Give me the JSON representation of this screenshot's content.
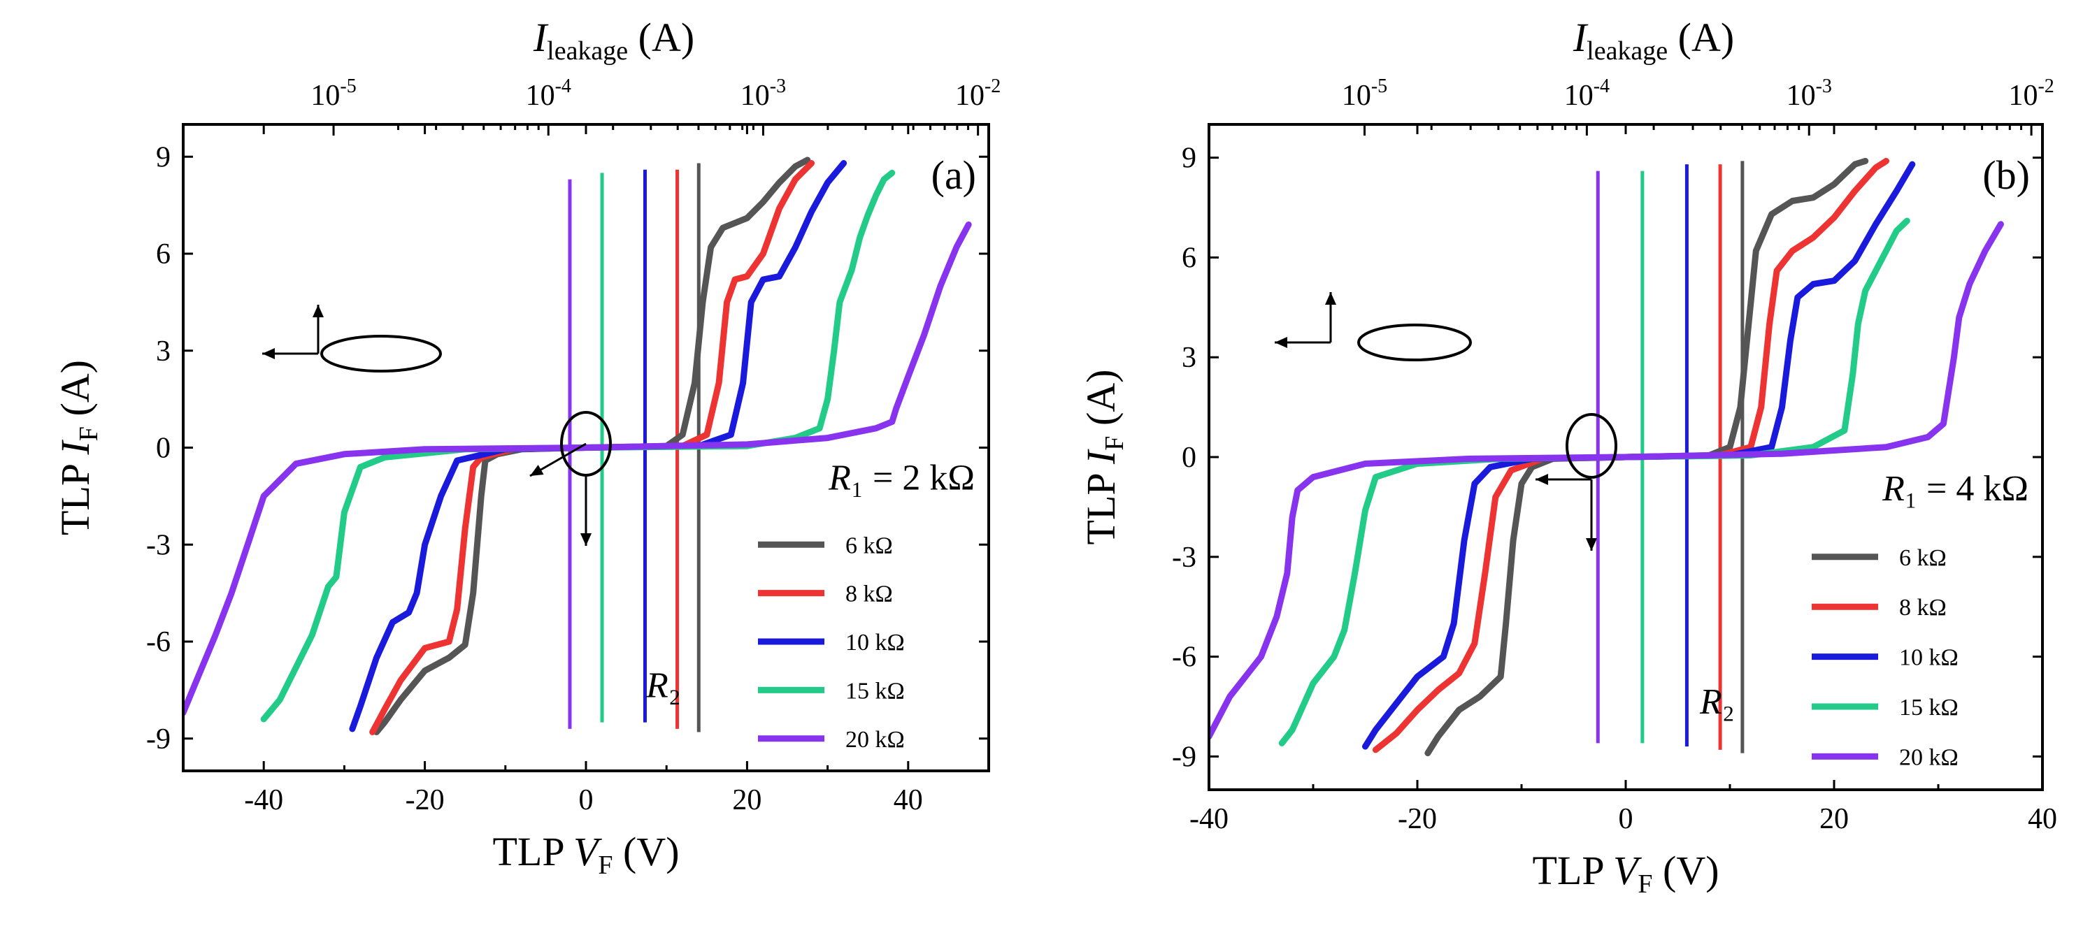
{
  "chart_data": [
    {
      "type": "line",
      "panel_label": "(a)",
      "r1_label": "R₁ = 2 kΩ",
      "xlabel": "TLP V_F (V)",
      "ylabel": "TLP I_F (A)",
      "x2label": "I_leakage (A)",
      "xlim": [
        -50,
        50
      ],
      "ylim": [
        -10,
        10
      ],
      "x2_log_range": [
        -5.7,
        -1.95
      ],
      "x_ticks": [
        -40,
        -20,
        0,
        20,
        40
      ],
      "y_ticks": [
        -9,
        -6,
        -3,
        0,
        3,
        6,
        9
      ],
      "x_tick_labels": [
        "-40",
        "-20",
        "0",
        "20",
        "40"
      ],
      "y_tick_labels": [
        "-9",
        "-6",
        "-3",
        "0",
        "3",
        "6",
        "9"
      ],
      "x2_ticks": [
        -5,
        -4,
        -3,
        -2
      ],
      "x2_tick_labels": [
        "10-5",
        "10-4",
        "10-3",
        "10-2"
      ],
      "legend_title": "R₂",
      "series": [
        {
          "name": "6 kΩ",
          "color": "#555555",
          "forward": [
            [
              0,
              0
            ],
            [
              10,
              0.05
            ],
            [
              12,
              0.4
            ],
            [
              13.5,
              2
            ],
            [
              14.5,
              4.5
            ],
            [
              15.5,
              6.2
            ],
            [
              17,
              6.8
            ],
            [
              20,
              7.1
            ],
            [
              22,
              7.6
            ],
            [
              24,
              8.2
            ],
            [
              26,
              8.7
            ],
            [
              27.5,
              8.9
            ]
          ],
          "reverse": [
            [
              0,
              0
            ],
            [
              -8,
              -0.05
            ],
            [
              -11,
              -0.2
            ],
            [
              -12.5,
              -0.4
            ],
            [
              -13,
              -1.5
            ],
            [
              -14,
              -4.5
            ],
            [
              -15,
              -6.1
            ],
            [
              -17,
              -6.5
            ],
            [
              -20,
              -6.9
            ],
            [
              -23,
              -7.8
            ],
            [
              -25,
              -8.5
            ],
            [
              -26,
              -8.8
            ]
          ],
          "leak_current_log": -3.3,
          "leak_ylim": [
            -8.8,
            8.8
          ]
        },
        {
          "name": "8 kΩ",
          "color": "#ee3333",
          "forward": [
            [
              0,
              0
            ],
            [
              12,
              0.05
            ],
            [
              15,
              0.4
            ],
            [
              16.5,
              2
            ],
            [
              17.5,
              4.5
            ],
            [
              18.5,
              5.2
            ],
            [
              20,
              5.3
            ],
            [
              22,
              6
            ],
            [
              24,
              7.4
            ],
            [
              26,
              8.3
            ],
            [
              28,
              8.8
            ]
          ],
          "reverse": [
            [
              0,
              0
            ],
            [
              -9,
              -0.05
            ],
            [
              -13,
              -0.3
            ],
            [
              -14,
              -0.6
            ],
            [
              -15,
              -2.5
            ],
            [
              -16,
              -5
            ],
            [
              -17,
              -6
            ],
            [
              -20,
              -6.2
            ],
            [
              -23,
              -7.2
            ],
            [
              -25,
              -8.1
            ],
            [
              -26.5,
              -8.8
            ]
          ],
          "leak_current_log": -3.4,
          "leak_ylim": [
            -8.7,
            8.6
          ]
        },
        {
          "name": "10 kΩ",
          "color": "#1a1add",
          "forward": [
            [
              0,
              0
            ],
            [
              14,
              0.05
            ],
            [
              18,
              0.4
            ],
            [
              19.5,
              2
            ],
            [
              20.5,
              4.5
            ],
            [
              22,
              5.2
            ],
            [
              24,
              5.3
            ],
            [
              26,
              6.2
            ],
            [
              28,
              7.3
            ],
            [
              30,
              8.2
            ],
            [
              32,
              8.8
            ]
          ],
          "reverse": [
            [
              0,
              0
            ],
            [
              -10,
              -0.05
            ],
            [
              -16,
              -0.4
            ],
            [
              -18,
              -1.5
            ],
            [
              -20,
              -3
            ],
            [
              -21,
              -4.5
            ],
            [
              -22,
              -5.1
            ],
            [
              -24,
              -5.4
            ],
            [
              -26,
              -6.5
            ],
            [
              -28,
              -8
            ],
            [
              -29,
              -8.7
            ]
          ],
          "leak_current_log": -3.55,
          "leak_ylim": [
            -8.5,
            8.6
          ]
        },
        {
          "name": "15 kΩ",
          "color": "#22cc88",
          "forward": [
            [
              0,
              0
            ],
            [
              20,
              0.05
            ],
            [
              26,
              0.3
            ],
            [
              29,
              0.6
            ],
            [
              30,
              1.5
            ],
            [
              30.8,
              3
            ],
            [
              31.5,
              4.5
            ],
            [
              33,
              5.5
            ],
            [
              34,
              6.5
            ],
            [
              35,
              7.2
            ],
            [
              36,
              7.8
            ],
            [
              37,
              8.3
            ],
            [
              38,
              8.5
            ]
          ],
          "reverse": [
            [
              0,
              0
            ],
            [
              -15,
              -0.05
            ],
            [
              -25,
              -0.3
            ],
            [
              -28,
              -0.6
            ],
            [
              -30,
              -2
            ],
            [
              -31,
              -4
            ],
            [
              -32,
              -4.3
            ],
            [
              -34,
              -5.8
            ],
            [
              -36,
              -6.8
            ],
            [
              -38,
              -7.8
            ],
            [
              -40,
              -8.4
            ]
          ],
          "leak_current_log": -3.75,
          "leak_ylim": [
            -8.5,
            8.5
          ]
        },
        {
          "name": "20 kΩ",
          "color": "#8833ee",
          "forward": [
            [
              0,
              0
            ],
            [
              20,
              0.1
            ],
            [
              30,
              0.3
            ],
            [
              36,
              0.6
            ],
            [
              38,
              0.8
            ],
            [
              38.5,
              1.2
            ],
            [
              40,
              2.2
            ],
            [
              42,
              3.5
            ],
            [
              44,
              5
            ],
            [
              46,
              6.2
            ],
            [
              47.5,
              6.9
            ]
          ],
          "reverse": [
            [
              0,
              0
            ],
            [
              -20,
              -0.05
            ],
            [
              -30,
              -0.2
            ],
            [
              -36,
              -0.5
            ],
            [
              -38,
              -1
            ],
            [
              -40,
              -1.5
            ],
            [
              -42,
              -3
            ],
            [
              -44,
              -4.5
            ],
            [
              -46,
              -5.8
            ],
            [
              -48,
              -7
            ],
            [
              -50,
              -8.2
            ]
          ],
          "leak_current_log": -3.9,
          "leak_ylim": [
            -8.7,
            8.3
          ]
        }
      ]
    },
    {
      "type": "line",
      "panel_label": "(b)",
      "r1_label": "R₁ = 4 kΩ",
      "xlabel": "TLP V_F (V)",
      "ylabel": "TLP I_F (A)",
      "x2label": "I_leakage (A)",
      "xlim": [
        -40,
        40
      ],
      "ylim": [
        -10,
        10
      ],
      "x2_log_range": [
        -5.7,
        -1.95
      ],
      "x_ticks": [
        -40,
        -20,
        0,
        20,
        40
      ],
      "y_ticks": [
        -9,
        -6,
        -3,
        0,
        3,
        6,
        9
      ],
      "x_tick_labels": [
        "-40",
        "-20",
        "0",
        "20",
        "40"
      ],
      "y_tick_labels": [
        "-9",
        "-6",
        "-3",
        "0",
        "3",
        "6",
        "9"
      ],
      "x2_ticks": [
        -5,
        -4,
        -3,
        -2
      ],
      "x2_tick_labels": [
        "10-5",
        "10-4",
        "10-3",
        "10-2"
      ],
      "legend_title": "R₂",
      "series": [
        {
          "name": "6 kΩ",
          "color": "#555555",
          "forward": [
            [
              0,
              0
            ],
            [
              8,
              0.05
            ],
            [
              10,
              0.3
            ],
            [
              11,
              1.5
            ],
            [
              11.8,
              4
            ],
            [
              12.5,
              6.2
            ],
            [
              14,
              7.3
            ],
            [
              16,
              7.7
            ],
            [
              18,
              7.8
            ],
            [
              20,
              8.2
            ],
            [
              22,
              8.8
            ],
            [
              23,
              8.9
            ]
          ],
          "reverse": [
            [
              0,
              0
            ],
            [
              -7,
              -0.05
            ],
            [
              -9,
              -0.3
            ],
            [
              -10,
              -0.8
            ],
            [
              -10.8,
              -2.5
            ],
            [
              -11.5,
              -5
            ],
            [
              -12,
              -6.6
            ],
            [
              -14,
              -7.2
            ],
            [
              -16,
              -7.6
            ],
            [
              -18,
              -8.4
            ],
            [
              -19,
              -8.9
            ]
          ],
          "leak_current_log": -3.3,
          "leak_ylim": [
            -8.9,
            8.9
          ]
        },
        {
          "name": "8 kΩ",
          "color": "#ee3333",
          "forward": [
            [
              0,
              0
            ],
            [
              9,
              0.05
            ],
            [
              12,
              0.3
            ],
            [
              13,
              1.5
            ],
            [
              13.8,
              4
            ],
            [
              14.5,
              5.6
            ],
            [
              16,
              6.2
            ],
            [
              18,
              6.6
            ],
            [
              20,
              7.2
            ],
            [
              22,
              8
            ],
            [
              24,
              8.7
            ],
            [
              25,
              8.9
            ]
          ],
          "reverse": [
            [
              0,
              0
            ],
            [
              -8,
              -0.05
            ],
            [
              -11,
              -0.4
            ],
            [
              -12.5,
              -1.2
            ],
            [
              -13.5,
              -3.5
            ],
            [
              -14.5,
              -5.6
            ],
            [
              -16,
              -6.5
            ],
            [
              -18,
              -7
            ],
            [
              -20,
              -7.6
            ],
            [
              -22,
              -8.3
            ],
            [
              -24,
              -8.8
            ]
          ],
          "leak_current_log": -3.4,
          "leak_ylim": [
            -8.8,
            8.8
          ]
        },
        {
          "name": "10 kΩ",
          "color": "#1a1add",
          "forward": [
            [
              0,
              0
            ],
            [
              10,
              0.05
            ],
            [
              14,
              0.3
            ],
            [
              15,
              1.5
            ],
            [
              15.8,
              3.5
            ],
            [
              16.5,
              4.8
            ],
            [
              18,
              5.2
            ],
            [
              20,
              5.3
            ],
            [
              22,
              5.9
            ],
            [
              24,
              7
            ],
            [
              26,
              8
            ],
            [
              27.5,
              8.8
            ]
          ],
          "reverse": [
            [
              0,
              0
            ],
            [
              -9,
              -0.05
            ],
            [
              -13,
              -0.3
            ],
            [
              -14.5,
              -0.8
            ],
            [
              -15.5,
              -2.5
            ],
            [
              -16.5,
              -5
            ],
            [
              -17.5,
              -6
            ],
            [
              -20,
              -6.6
            ],
            [
              -22,
              -7.4
            ],
            [
              -24,
              -8.2
            ],
            [
              -25,
              -8.7
            ]
          ],
          "leak_current_log": -3.55,
          "leak_ylim": [
            -8.7,
            8.8
          ]
        },
        {
          "name": "15 kΩ",
          "color": "#22cc88",
          "forward": [
            [
              0,
              0
            ],
            [
              12,
              0.05
            ],
            [
              18,
              0.3
            ],
            [
              21,
              0.8
            ],
            [
              21.8,
              2.5
            ],
            [
              22.3,
              4
            ],
            [
              23,
              5
            ],
            [
              24,
              5.6
            ],
            [
              25,
              6.2
            ],
            [
              26,
              6.8
            ],
            [
              27,
              7.1
            ]
          ],
          "reverse": [
            [
              0,
              0
            ],
            [
              -12,
              -0.05
            ],
            [
              -20,
              -0.2
            ],
            [
              -24,
              -0.6
            ],
            [
              -25,
              -1.6
            ],
            [
              -26,
              -3.5
            ],
            [
              -27,
              -5.2
            ],
            [
              -28,
              -6
            ],
            [
              -30,
              -6.8
            ],
            [
              -32,
              -8.2
            ],
            [
              -33,
              -8.6
            ]
          ],
          "leak_current_log": -3.75,
          "leak_ylim": [
            -8.6,
            8.6
          ]
        },
        {
          "name": "20 kΩ",
          "color": "#8833ee",
          "forward": [
            [
              0,
              0
            ],
            [
              15,
              0.1
            ],
            [
              25,
              0.3
            ],
            [
              29,
              0.6
            ],
            [
              30.5,
              1
            ],
            [
              31,
              2
            ],
            [
              31.5,
              3
            ],
            [
              32,
              4.2
            ],
            [
              33,
              5.2
            ],
            [
              34.5,
              6.2
            ],
            [
              36,
              7
            ]
          ],
          "reverse": [
            [
              0,
              0
            ],
            [
              -15,
              -0.05
            ],
            [
              -25,
              -0.2
            ],
            [
              -30,
              -0.6
            ],
            [
              -31.5,
              -1
            ],
            [
              -32,
              -1.8
            ],
            [
              -32.5,
              -3.5
            ],
            [
              -33.5,
              -4.8
            ],
            [
              -35,
              -6
            ],
            [
              -38,
              -7.2
            ],
            [
              -40,
              -8.4
            ]
          ],
          "leak_current_log": -3.95,
          "leak_ylim": [
            -8.6,
            8.6
          ]
        }
      ]
    }
  ]
}
